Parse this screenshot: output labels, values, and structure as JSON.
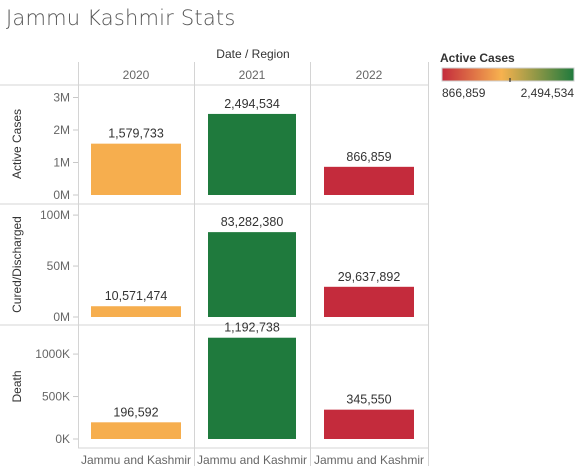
{
  "title": "Jammu Kashmir Stats",
  "chart_data": {
    "type": "bar",
    "column_header": "Date / Region",
    "columns": [
      "2020",
      "2021",
      "2022"
    ],
    "region_label": "Jammu and Kashmir",
    "measures": [
      {
        "name": "Active Cases",
        "values": [
          1579733,
          2494534,
          866859
        ],
        "labels": [
          "1,579,733",
          "2,494,534",
          "866,859"
        ],
        "ticks": [
          "0M",
          "1M",
          "2M",
          "3M"
        ],
        "tick_values": [
          0,
          1000000,
          2000000,
          3000000
        ],
        "ylim": [
          0,
          3200000
        ]
      },
      {
        "name": "Cured/Discharged",
        "values": [
          10571474,
          83282380,
          29637892
        ],
        "labels": [
          "10,571,474",
          "83,282,380",
          "29,637,892"
        ],
        "ticks": [
          "0M",
          "50M",
          "100M"
        ],
        "tick_values": [
          0,
          50000000,
          100000000
        ],
        "ylim": [
          0,
          105000000
        ]
      },
      {
        "name": "Death",
        "values": [
          196592,
          1192738,
          345550
        ],
        "labels": [
          "196,592",
          "1,192,738",
          "345,550"
        ],
        "ticks": [
          "0K",
          "500K",
          "1000K"
        ],
        "tick_values": [
          0,
          500000,
          1000000
        ],
        "ylim": [
          0,
          1260000
        ]
      }
    ],
    "legend": {
      "title": "Active Cases",
      "min_label": "866,859",
      "max_label": "2,494,534",
      "min": 866859,
      "max": 2494534,
      "colors": [
        "#c42b3c",
        "#f7b24f",
        "#1f7a3d"
      ],
      "placement": "top-right"
    }
  }
}
